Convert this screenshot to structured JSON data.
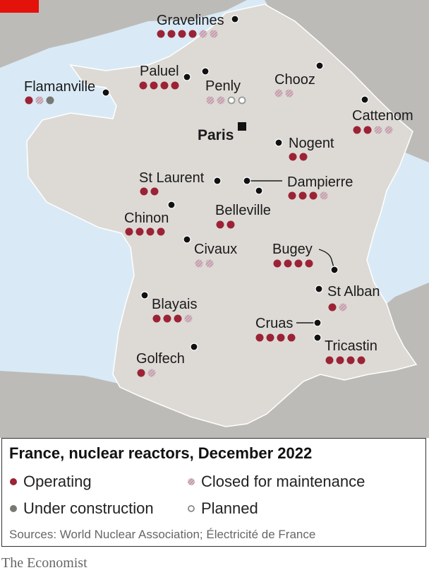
{
  "title": "France, nuclear reactors, December 2022",
  "legend": {
    "operating": "Operating",
    "maintenance": "Closed for maintenance",
    "construction": "Under construction",
    "planned": "Planned"
  },
  "sources": "Sources: World Nuclear Association; Électricité de France",
  "brand": "The Economist",
  "capital": "Paris",
  "colors": {
    "operating": "#9b2335",
    "maintenance": "#c8a2b0",
    "construction": "#777a74",
    "planned": "#999999",
    "sea": "#d9eaf6",
    "land_france": "#dddad6",
    "land_other": "#bdbbb8",
    "accent": "#e3120b"
  },
  "sites": [
    {
      "name": "Gravelines",
      "reactors": [
        "op",
        "op",
        "op",
        "op",
        "mt",
        "mt"
      ]
    },
    {
      "name": "Paluel",
      "reactors": [
        "op",
        "op",
        "op",
        "op"
      ]
    },
    {
      "name": "Flamanville",
      "reactors": [
        "op",
        "mt",
        "uc"
      ]
    },
    {
      "name": "Penly",
      "reactors": [
        "mt",
        "mt",
        "pl",
        "pl"
      ]
    },
    {
      "name": "Chooz",
      "reactors": [
        "mt",
        "mt"
      ]
    },
    {
      "name": "Cattenom",
      "reactors": [
        "op",
        "op",
        "mt",
        "mt"
      ]
    },
    {
      "name": "Nogent",
      "reactors": [
        "op",
        "op"
      ]
    },
    {
      "name": "St Laurent",
      "reactors": [
        "op",
        "op"
      ]
    },
    {
      "name": "Dampierre",
      "reactors": [
        "op",
        "op",
        "op",
        "mt"
      ]
    },
    {
      "name": "Belleville",
      "reactors": [
        "op",
        "op"
      ]
    },
    {
      "name": "Chinon",
      "reactors": [
        "op",
        "op",
        "op",
        "op"
      ]
    },
    {
      "name": "Civaux",
      "reactors": [
        "mt",
        "mt"
      ]
    },
    {
      "name": "Bugey",
      "reactors": [
        "op",
        "op",
        "op",
        "op"
      ]
    },
    {
      "name": "St Alban",
      "reactors": [
        "op",
        "mt"
      ]
    },
    {
      "name": "Blayais",
      "reactors": [
        "op",
        "op",
        "op",
        "mt"
      ]
    },
    {
      "name": "Cruas",
      "reactors": [
        "op",
        "op",
        "op",
        "op"
      ]
    },
    {
      "name": "Tricastin",
      "reactors": [
        "op",
        "op",
        "op",
        "op"
      ]
    },
    {
      "name": "Golfech",
      "reactors": [
        "op",
        "mt"
      ]
    }
  ]
}
